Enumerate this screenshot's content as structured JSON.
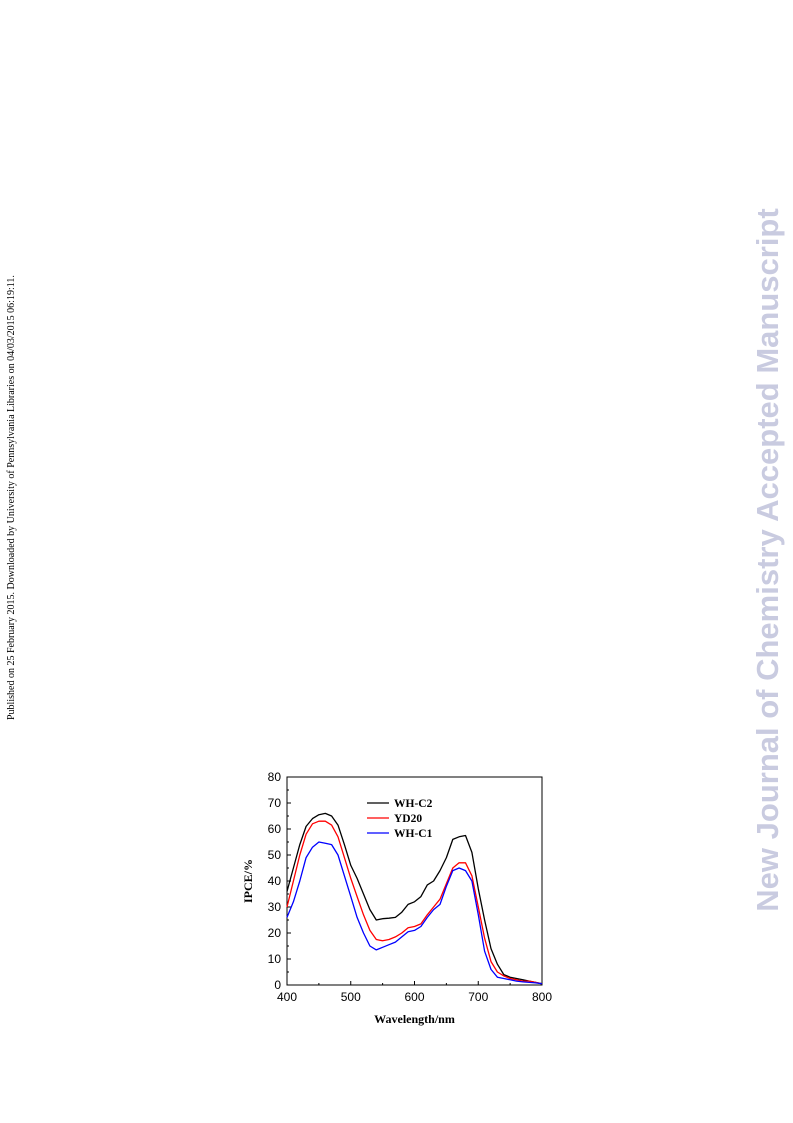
{
  "side_note": "Published on 25 February 2015. Downloaded by University of Pennsylvania Libraries on 04/03/2015 06:19:11.",
  "watermark": "New Journal of Chemistry Accepted Manuscript",
  "chart_data": {
    "type": "line",
    "xlabel": "Wavelength/nm",
    "ylabel": "IPCE/%",
    "xlim": [
      400,
      800
    ],
    "ylim": [
      0,
      80
    ],
    "xticks": [
      400,
      500,
      600,
      700,
      800
    ],
    "yticks": [
      0,
      10,
      20,
      30,
      40,
      50,
      60,
      70,
      80
    ],
    "grid": false,
    "legend_position": "top-center",
    "series": [
      {
        "name": "WH-C2",
        "color": "#000000",
        "x": [
          400,
          410,
          420,
          430,
          440,
          450,
          460,
          470,
          480,
          490,
          500,
          510,
          520,
          530,
          540,
          550,
          560,
          570,
          580,
          590,
          600,
          610,
          620,
          630,
          640,
          650,
          660,
          670,
          680,
          690,
          700,
          710,
          720,
          730,
          740,
          750,
          760,
          770,
          780,
          790,
          800
        ],
        "y": [
          36,
          45,
          54,
          61,
          64,
          65.5,
          66,
          65,
          61.5,
          54,
          46,
          41,
          35,
          29,
          25,
          25.5,
          25.7,
          26,
          28,
          31,
          32,
          34,
          38.5,
          40,
          44,
          49,
          56,
          57,
          57.5,
          51,
          37,
          25,
          14,
          8,
          4,
          3,
          2.5,
          2,
          1.5,
          1,
          0.5
        ]
      },
      {
        "name": "YD20",
        "color": "#ff0000",
        "x": [
          400,
          410,
          420,
          430,
          440,
          450,
          460,
          470,
          480,
          490,
          500,
          510,
          520,
          530,
          540,
          550,
          560,
          570,
          580,
          590,
          600,
          610,
          620,
          630,
          640,
          650,
          660,
          670,
          680,
          690,
          700,
          710,
          720,
          730,
          740,
          750,
          760,
          770,
          780,
          790,
          800
        ],
        "y": [
          30,
          40,
          50,
          58,
          62,
          63,
          63,
          61.5,
          57,
          49,
          41,
          34,
          27,
          21,
          17.5,
          17,
          17.5,
          18.5,
          20,
          22,
          22.5,
          23.5,
          27,
          30,
          33,
          39,
          45,
          47,
          47,
          42,
          30,
          18,
          9,
          5,
          3.5,
          2.5,
          2,
          1.5,
          1.5,
          1,
          0.5
        ]
      },
      {
        "name": "WH-C1",
        "color": "#0000ff",
        "x": [
          400,
          410,
          420,
          430,
          440,
          450,
          460,
          470,
          480,
          490,
          500,
          510,
          520,
          530,
          540,
          550,
          560,
          570,
          580,
          590,
          600,
          610,
          620,
          630,
          640,
          650,
          660,
          670,
          680,
          690,
          700,
          710,
          720,
          730,
          740,
          750,
          760,
          770,
          780,
          790,
          800
        ],
        "y": [
          26,
          32,
          40,
          49,
          53,
          55,
          54.5,
          54,
          50,
          42,
          34,
          26,
          20,
          15,
          13.5,
          14.5,
          15.5,
          16.5,
          18.5,
          20.5,
          21,
          22.5,
          26,
          29,
          31,
          38,
          44,
          45,
          44,
          40,
          27,
          13,
          6,
          3,
          2.5,
          2,
          1.5,
          1.2,
          1,
          0.8,
          0.5
        ]
      }
    ]
  }
}
